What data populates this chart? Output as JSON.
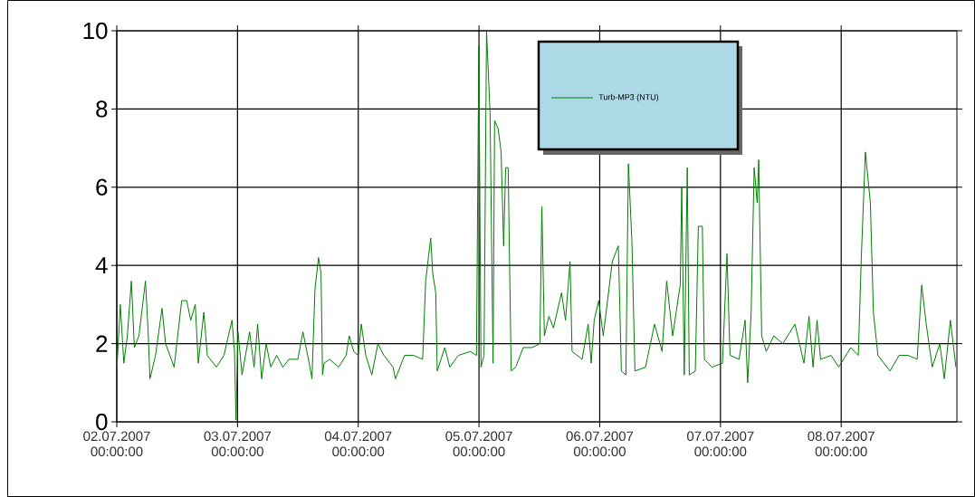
{
  "chart_data": {
    "type": "line",
    "xlim": [
      "2007-07-02T00:00",
      "2007-07-08T23:00"
    ],
    "ylim": [
      0,
      10
    ],
    "xticks": [
      {
        "value": "2007-07-02T00:00",
        "label": "02.07.2007 00:00:00"
      },
      {
        "value": "2007-07-03T00:00",
        "label": "03.07.2007 00:00:00"
      },
      {
        "value": "2007-07-04T00:00",
        "label": "04.07.2007 00:00:00"
      },
      {
        "value": "2007-07-05T00:00",
        "label": "05.07.2007 00:00:00"
      },
      {
        "value": "2007-07-06T00:00",
        "label": "06.07.2007 00:00:00"
      },
      {
        "value": "2007-07-07T00:00",
        "label": "07.07.2007 00:00:00"
      },
      {
        "value": "2007-07-08T00:00",
        "label": "08.07.2007 00:00:00"
      }
    ],
    "yticks": [
      0,
      2,
      4,
      6,
      8,
      10
    ],
    "grid": true,
    "legend": "top",
    "marker": "none",
    "line_style": "solid",
    "series": [
      {
        "name": "Turb-MP3 (NTU)",
        "color": "#008000",
        "x": [
          "2007-07-02T00:00",
          "2007-07-02T00:42",
          "2007-07-02T01:24",
          "2007-07-02T02:06",
          "2007-07-02T02:54",
          "2007-07-02T03:30",
          "2007-07-02T04:24",
          "2007-07-02T05:42",
          "2007-07-02T06:12",
          "2007-07-02T06:36",
          "2007-07-02T07:42",
          "2007-07-02T09:00",
          "2007-07-02T09:42",
          "2007-07-02T11:24",
          "2007-07-02T12:54",
          "2007-07-02T13:54",
          "2007-07-02T14:42",
          "2007-07-02T15:36",
          "2007-07-02T16:12",
          "2007-07-02T17:18",
          "2007-07-02T18:00",
          "2007-07-02T19:48",
          "2007-07-02T21:18",
          "2007-07-02T22:54",
          "2007-07-02T23:24",
          "2007-07-02T23:42",
          "2007-07-03T00:06",
          "2007-07-03T00:54",
          "2007-07-03T02:24",
          "2007-07-03T03:18",
          "2007-07-03T04:00",
          "2007-07-03T04:48",
          "2007-07-03T05:42",
          "2007-07-03T06:36",
          "2007-07-03T07:48",
          "2007-07-03T09:00",
          "2007-07-03T10:12",
          "2007-07-03T12:00",
          "2007-07-03T13:00",
          "2007-07-03T14:06",
          "2007-07-03T14:48",
          "2007-07-03T15:24",
          "2007-07-03T16:06",
          "2007-07-03T16:36",
          "2007-07-03T16:54",
          "2007-07-03T17:12",
          "2007-07-03T18:18",
          "2007-07-03T20:06",
          "2007-07-03T21:36",
          "2007-07-03T22:12",
          "2007-07-03T23:06",
          "2007-07-04T00:00",
          "2007-07-04T00:36",
          "2007-07-04T01:30",
          "2007-07-04T02:42",
          "2007-07-04T03:54",
          "2007-07-04T05:06",
          "2007-07-04T06:54",
          "2007-07-04T07:24",
          "2007-07-04T09:12",
          "2007-07-04T11:00",
          "2007-07-04T12:48",
          "2007-07-04T13:24",
          "2007-07-04T14:24",
          "2007-07-04T14:48",
          "2007-07-04T15:24",
          "2007-07-04T15:42",
          "2007-07-04T17:12",
          "2007-07-04T18:12",
          "2007-07-04T19:54",
          "2007-07-04T22:18",
          "2007-07-04T23:30",
          "2007-07-04T23:58",
          "2007-07-05T00:24",
          "2007-07-05T01:00",
          "2007-07-05T01:30",
          "2007-07-05T02:12",
          "2007-07-05T02:48",
          "2007-07-05T03:06",
          "2007-07-05T03:48",
          "2007-07-05T04:24",
          "2007-07-05T04:54",
          "2007-07-05T05:18",
          "2007-07-05T05:48",
          "2007-07-05T06:24",
          "2007-07-05T07:18",
          "2007-07-05T08:48",
          "2007-07-05T10:36",
          "2007-07-05T12:06",
          "2007-07-05T12:30",
          "2007-07-05T13:00",
          "2007-07-05T13:54",
          "2007-07-05T14:48",
          "2007-07-05T16:24",
          "2007-07-05T17:12",
          "2007-07-05T18:06",
          "2007-07-05T18:30",
          "2007-07-05T20:30",
          "2007-07-05T21:42",
          "2007-07-05T22:18",
          "2007-07-05T22:54",
          "2007-07-05T23:48",
          "2007-07-06T00:42",
          "2007-07-06T02:30",
          "2007-07-06T03:42",
          "2007-07-06T04:18",
          "2007-07-06T05:12",
          "2007-07-06T05:42",
          "2007-07-06T06:24",
          "2007-07-06T07:00",
          "2007-07-06T09:06",
          "2007-07-06T10:54",
          "2007-07-06T12:24",
          "2007-07-06T13:18",
          "2007-07-06T14:30",
          "2007-07-06T16:00",
          "2007-07-06T16:18",
          "2007-07-06T16:48",
          "2007-07-06T17:24",
          "2007-07-06T17:48",
          "2007-07-06T19:00",
          "2007-07-06T19:36",
          "2007-07-06T20:24",
          "2007-07-06T20:48",
          "2007-07-06T22:18",
          "2007-07-07T00:24",
          "2007-07-07T01:18",
          "2007-07-07T01:54",
          "2007-07-07T03:42",
          "2007-07-07T04:54",
          "2007-07-07T05:24",
          "2007-07-07T06:06",
          "2007-07-07T06:42",
          "2007-07-07T07:18",
          "2007-07-07T07:36",
          "2007-07-07T08:12",
          "2007-07-07T09:06",
          "2007-07-07T10:36",
          "2007-07-07T12:24",
          "2007-07-07T14:48",
          "2007-07-07T15:42",
          "2007-07-07T16:36",
          "2007-07-07T17:36",
          "2007-07-07T18:24",
          "2007-07-07T19:12",
          "2007-07-07T19:54",
          "2007-07-07T22:00",
          "2007-07-07T23:30",
          "2007-07-08T01:54",
          "2007-07-08T03:24",
          "2007-07-08T04:00",
          "2007-07-08T04:48",
          "2007-07-08T05:48",
          "2007-07-08T06:24",
          "2007-07-08T07:18",
          "2007-07-08T09:42",
          "2007-07-08T11:30",
          "2007-07-08T13:18",
          "2007-07-08T15:06",
          "2007-07-08T16:00",
          "2007-07-08T16:54",
          "2007-07-08T18:06",
          "2007-07-08T19:36",
          "2007-07-08T20:30",
          "2007-07-08T21:42",
          "2007-07-08T22:48"
        ],
        "values": [
          1.3,
          3.0,
          1.5,
          2.2,
          3.6,
          1.9,
          2.2,
          3.6,
          2.4,
          1.1,
          1.7,
          2.9,
          2.0,
          1.4,
          3.1,
          3.1,
          2.6,
          3.0,
          1.5,
          2.8,
          1.7,
          1.4,
          1.7,
          2.6,
          1.8,
          0.05,
          2.3,
          1.2,
          2.3,
          1.4,
          2.5,
          1.1,
          2.0,
          1.4,
          1.7,
          1.4,
          1.6,
          1.6,
          2.3,
          1.6,
          1.1,
          3.4,
          4.2,
          3.8,
          1.2,
          1.5,
          1.6,
          1.4,
          1.7,
          2.2,
          1.8,
          1.7,
          2.5,
          1.7,
          1.2,
          2.0,
          1.7,
          1.4,
          1.1,
          1.7,
          1.7,
          1.6,
          3.6,
          4.7,
          3.8,
          3.3,
          1.3,
          1.9,
          1.4,
          1.7,
          1.8,
          1.7,
          9.6,
          1.4,
          1.7,
          10.0,
          7.9,
          1.5,
          7.7,
          7.5,
          6.9,
          4.5,
          6.5,
          6.5,
          1.3,
          1.4,
          1.9,
          1.9,
          2.0,
          5.5,
          2.2,
          2.7,
          2.4,
          3.3,
          2.6,
          4.1,
          1.8,
          1.6,
          2.5,
          1.5,
          2.6,
          3.1,
          2.2,
          4.1,
          4.5,
          1.3,
          1.2,
          6.6,
          4.6,
          1.3,
          1.4,
          2.5,
          1.8,
          3.6,
          2.2,
          3.5,
          6.0,
          1.2,
          6.5,
          1.2,
          1.3,
          5.0,
          5.0,
          1.6,
          1.4,
          1.5,
          4.3,
          1.7,
          1.6,
          2.6,
          1.0,
          2.8,
          6.5,
          5.6,
          6.7,
          2.2,
          1.8,
          2.2,
          2.0,
          2.5,
          2.0,
          1.5,
          2.7,
          1.4,
          2.6,
          1.6,
          1.7,
          1.4,
          1.9,
          1.7,
          4.2,
          6.9,
          5.6,
          2.8,
          1.7,
          1.3,
          1.7,
          1.7,
          1.6,
          3.5,
          2.5,
          1.4,
          2.0,
          1.1,
          2.6,
          1.4
        ]
      }
    ]
  }
}
